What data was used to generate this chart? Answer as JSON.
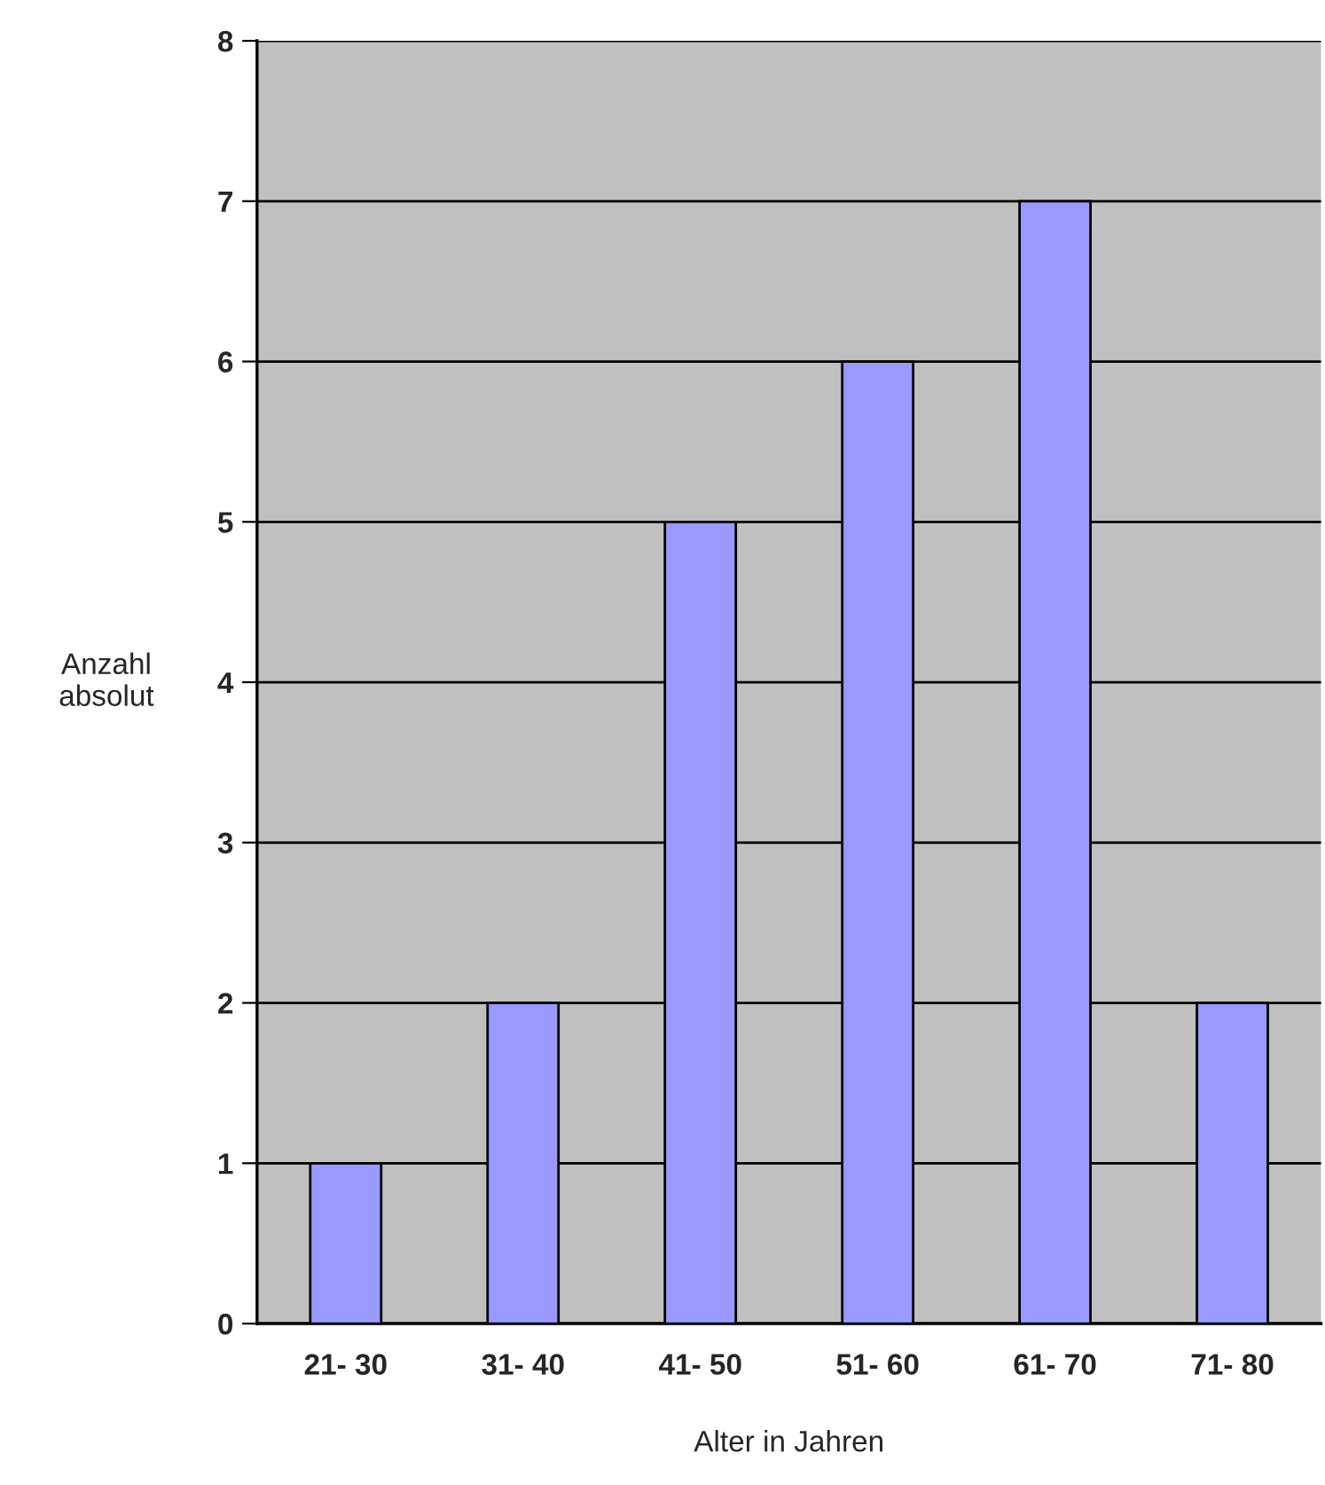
{
  "chart_data": {
    "type": "bar",
    "xlabel": "Alter in Jahren",
    "ylabel": "Anzahl\nabsolut",
    "categories": [
      "21- 30",
      "31- 40",
      "41- 50",
      "51- 60",
      "61- 70",
      "71- 80"
    ],
    "values": [
      1,
      2,
      5,
      6,
      7,
      2
    ],
    "color": "#9999ff",
    "ylim": [
      0,
      8
    ],
    "yticks": [
      0,
      1,
      2,
      3,
      4,
      5,
      6,
      7,
      8
    ],
    "grid": "y"
  }
}
